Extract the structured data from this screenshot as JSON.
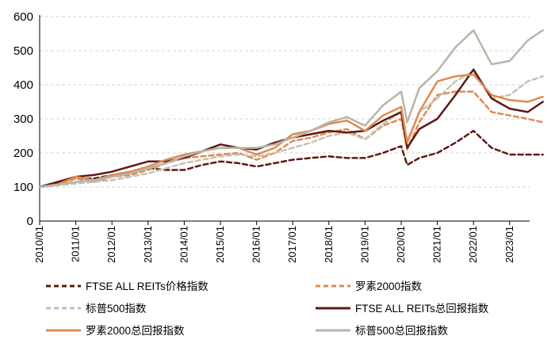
{
  "chart_data": {
    "type": "line",
    "title": "",
    "xlabel": "",
    "ylabel": "",
    "ylim": [
      0,
      600
    ],
    "yticks": [
      0,
      100,
      200,
      300,
      400,
      500,
      600
    ],
    "grid": "horizontal, dashed",
    "legend_position": "bottom, two columns",
    "xtick_labels": [
      "2010/01",
      "2011/01",
      "2012/01",
      "2013/01",
      "2014/01",
      "2015/01",
      "2016/01",
      "2017/01",
      "2018/01",
      "2019/01",
      "2020/01",
      "2021/01",
      "2022/01",
      "2023/01"
    ],
    "x": [
      "2010/01",
      "2010/07",
      "2011/01",
      "2011/07",
      "2012/01",
      "2012/07",
      "2013/01",
      "2013/07",
      "2014/01",
      "2014/07",
      "2015/01",
      "2015/07",
      "2016/01",
      "2016/07",
      "2017/01",
      "2017/07",
      "2018/01",
      "2018/07",
      "2019/01",
      "2019/07",
      "2020/01",
      "2020/03",
      "2020/07",
      "2021/01",
      "2021/07",
      "2022/01",
      "2022/07",
      "2023/01",
      "2023/07",
      "2023/12"
    ],
    "series": [
      {
        "name": "FTSE ALL REITs价格指数",
        "color": "#5c1a14",
        "style": "dashed",
        "values": [
          100,
          110,
          125,
          125,
          135,
          145,
          155,
          150,
          150,
          165,
          175,
          170,
          160,
          170,
          180,
          185,
          190,
          185,
          185,
          200,
          220,
          165,
          185,
          200,
          230,
          265,
          215,
          195,
          195,
          195
        ]
      },
      {
        "name": "罗素2000指数",
        "color": "#e08a52",
        "style": "dashed",
        "values": [
          100,
          105,
          125,
          115,
          130,
          135,
          150,
          170,
          185,
          190,
          195,
          200,
          180,
          200,
          235,
          245,
          260,
          270,
          240,
          280,
          300,
          210,
          290,
          370,
          380,
          380,
          320,
          310,
          300,
          290
        ]
      },
      {
        "name": "标普500指数",
        "color": "#c3c3b4",
        "style": "dashed",
        "values": [
          100,
          105,
          110,
          115,
          120,
          130,
          140,
          155,
          170,
          180,
          190,
          195,
          190,
          200,
          215,
          230,
          250,
          260,
          240,
          285,
          320,
          235,
          320,
          360,
          410,
          440,
          360,
          370,
          410,
          425
        ]
      },
      {
        "name": "FTSE ALL REITs总回报指数",
        "color": "#5c1a14",
        "style": "solid",
        "values": [
          100,
          115,
          130,
          135,
          145,
          160,
          175,
          175,
          185,
          205,
          225,
          215,
          210,
          230,
          245,
          255,
          265,
          260,
          265,
          295,
          320,
          215,
          270,
          300,
          370,
          445,
          360,
          330,
          320,
          350
        ]
      },
      {
        "name": "罗素2000总回报指数",
        "color": "#e08a52",
        "style": "solid",
        "values": [
          100,
          108,
          130,
          120,
          135,
          145,
          160,
          180,
          195,
          205,
          215,
          215,
          195,
          215,
          255,
          265,
          285,
          295,
          265,
          310,
          335,
          230,
          320,
          410,
          425,
          430,
          370,
          355,
          350,
          365
        ]
      },
      {
        "name": "标普500总回报指数",
        "color": "#b6b6a8",
        "style": "solid",
        "values": [
          100,
          107,
          115,
          120,
          130,
          140,
          155,
          170,
          190,
          205,
          215,
          215,
          215,
          225,
          245,
          265,
          290,
          305,
          280,
          340,
          380,
          290,
          390,
          440,
          510,
          560,
          460,
          470,
          530,
          560
        ]
      }
    ]
  }
}
